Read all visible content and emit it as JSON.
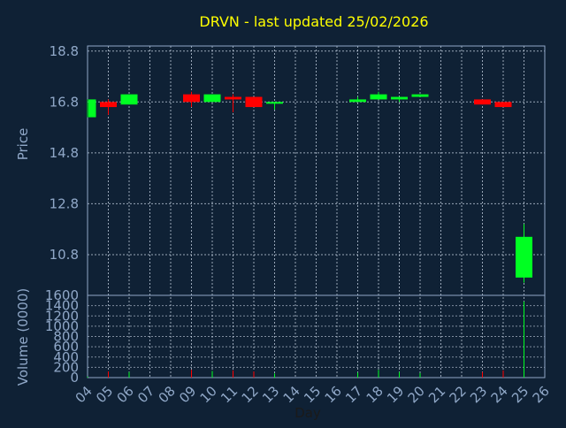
{
  "title": "DRVN - last updated 25/02/2026",
  "colors": {
    "background": "#0f2135",
    "title": "#ffff00",
    "axis_text": "#90a8c8",
    "axis_line": "#90a8c8",
    "grid": "#c8d4e4",
    "up": "#00ff22",
    "down": "#ff0000"
  },
  "chart_data": [
    {
      "type": "candlestick",
      "ylabel": "Price",
      "yticks": [
        "18.8",
        "16.8",
        "14.8",
        "12.8",
        "10.8"
      ],
      "ylim": [
        9.2,
        19.0
      ],
      "xlim": [
        4,
        26
      ],
      "grid": true,
      "candles": [
        {
          "day": 4,
          "open": 16.2,
          "close": 16.9,
          "high": 16.9,
          "low": 16.2
        },
        {
          "day": 5,
          "open": 16.8,
          "close": 16.6,
          "high": 16.9,
          "low": 16.3
        },
        {
          "day": 6,
          "open": 16.7,
          "close": 17.1,
          "high": 17.1,
          "low": 16.7
        },
        {
          "day": 9,
          "open": 17.1,
          "close": 16.8,
          "high": 17.2,
          "low": 16.6
        },
        {
          "day": 10,
          "open": 16.8,
          "close": 17.1,
          "high": 17.1,
          "low": 16.8
        },
        {
          "day": 11,
          "open": 17.0,
          "close": 16.9,
          "high": 17.1,
          "low": 16.4
        },
        {
          "day": 12,
          "open": 17.0,
          "close": 16.6,
          "high": 17.0,
          "low": 16.6
        },
        {
          "day": 13,
          "open": 16.8,
          "close": 16.8,
          "high": 16.8,
          "low": 16.5
        },
        {
          "day": 17,
          "open": 16.8,
          "close": 16.9,
          "high": 17.0,
          "low": 16.8
        },
        {
          "day": 18,
          "open": 16.9,
          "close": 17.1,
          "high": 17.2,
          "low": 16.9
        },
        {
          "day": 19,
          "open": 16.9,
          "close": 17.0,
          "high": 17.0,
          "low": 16.8
        },
        {
          "day": 20,
          "open": 17.0,
          "close": 17.1,
          "high": 17.1,
          "low": 17.0
        },
        {
          "day": 23,
          "open": 16.9,
          "close": 16.7,
          "high": 16.9,
          "low": 16.7
        },
        {
          "day": 24,
          "open": 16.8,
          "close": 16.6,
          "high": 16.8,
          "low": 16.6
        },
        {
          "day": 25,
          "open": 9.9,
          "close": 11.5,
          "high": 12.0,
          "low": 9.7
        }
      ]
    },
    {
      "type": "bar",
      "ylabel": "Volume (0000)",
      "xlabel": "Day",
      "yticks": [
        "1600",
        "1400",
        "1200",
        "1000",
        "800",
        "600",
        "400",
        "200",
        "0"
      ],
      "ylim": [
        0,
        1600
      ],
      "xlim": [
        4,
        26
      ],
      "grid": true,
      "xticks": [
        "04",
        "05",
        "06",
        "07",
        "08",
        "09",
        "10",
        "11",
        "12",
        "13",
        "14",
        "15",
        "16",
        "17",
        "18",
        "19",
        "20",
        "21",
        "22",
        "23",
        "24",
        "25",
        "26"
      ],
      "bars": [
        {
          "day": 4,
          "value": 20,
          "dir": "up"
        },
        {
          "day": 5,
          "value": 120,
          "dir": "down"
        },
        {
          "day": 6,
          "value": 110,
          "dir": "up"
        },
        {
          "day": 9,
          "value": 150,
          "dir": "down"
        },
        {
          "day": 10,
          "value": 130,
          "dir": "up"
        },
        {
          "day": 11,
          "value": 140,
          "dir": "down"
        },
        {
          "day": 12,
          "value": 120,
          "dir": "down"
        },
        {
          "day": 13,
          "value": 80,
          "dir": "up"
        },
        {
          "day": 17,
          "value": 100,
          "dir": "up"
        },
        {
          "day": 18,
          "value": 150,
          "dir": "up"
        },
        {
          "day": 19,
          "value": 110,
          "dir": "up"
        },
        {
          "day": 20,
          "value": 90,
          "dir": "up"
        },
        {
          "day": 23,
          "value": 110,
          "dir": "down"
        },
        {
          "day": 24,
          "value": 140,
          "dir": "down"
        },
        {
          "day": 25,
          "value": 1480,
          "dir": "up"
        }
      ]
    }
  ]
}
